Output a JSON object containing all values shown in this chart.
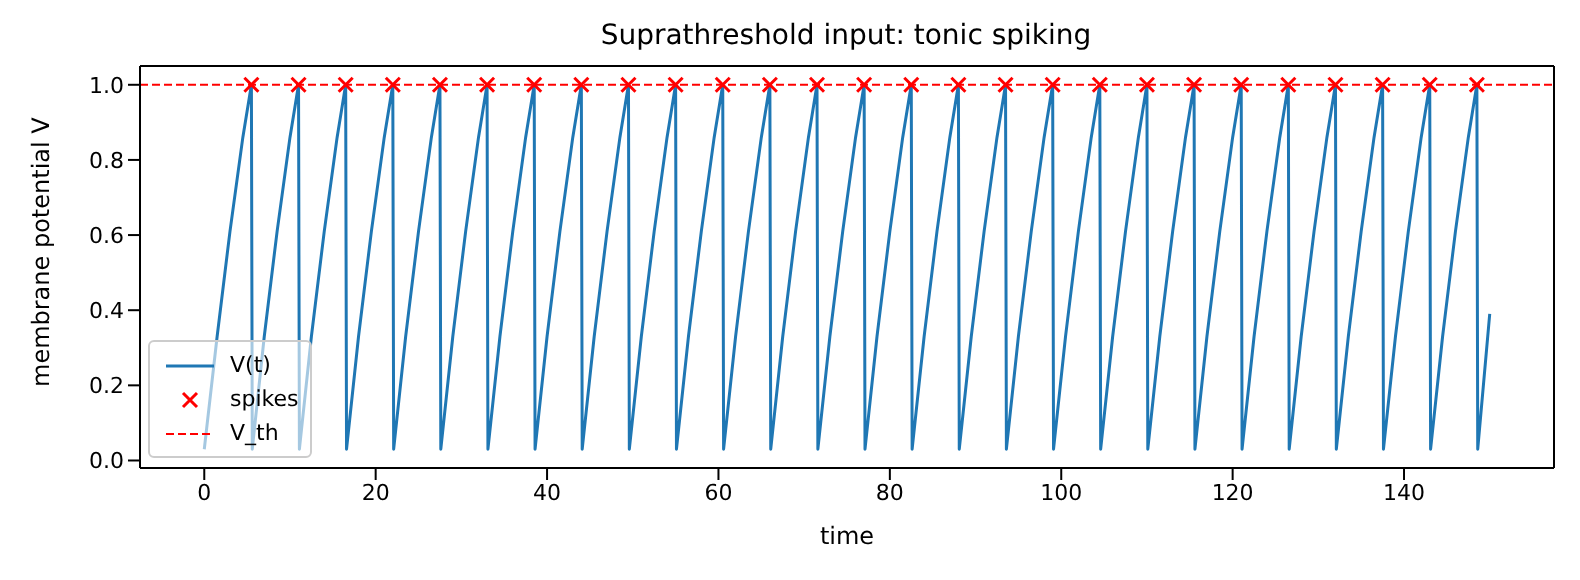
{
  "chart_data": {
    "type": "line",
    "title": "Suprathreshold input: tonic spiking",
    "xlabel": "time",
    "ylabel": "membrane potential V",
    "xlim": [
      -7.5,
      157.5
    ],
    "xticks": [
      0,
      20,
      40,
      60,
      80,
      100,
      120,
      140
    ],
    "ylim": [
      -0.02,
      1.05
    ],
    "yticks": [
      {
        "value": 0,
        "label": "0.0"
      },
      0.2,
      0.4,
      0.6,
      0.8,
      {
        "value": 1,
        "label": "1.0"
      }
    ],
    "grid": false,
    "legend": "bottom left",
    "series": [
      {
        "name": "V(t)",
        "type": "line",
        "color": "#1f77b4",
        "marker": "none",
        "line_style": "solid",
        "x": [
          0,
          1.5,
          3,
          4.5,
          5.5,
          5.6,
          7,
          8.5,
          10,
          11,
          11.1,
          12.5,
          14,
          15.5,
          16.5,
          16.6,
          18,
          19.5,
          21,
          22,
          22.1,
          23.5,
          25,
          26.5,
          27.5,
          27.6,
          29,
          30.5,
          32,
          33,
          33.1,
          34.5,
          36,
          37.5,
          38.5,
          38.6,
          40,
          41.5,
          43,
          44,
          44.1,
          45.5,
          47,
          48.5,
          49.5,
          49.6,
          51,
          52.5,
          54,
          55,
          55.1,
          56.5,
          58,
          59.5,
          60.5,
          60.6,
          62,
          63.5,
          65,
          66,
          66.1,
          67.5,
          69,
          70.5,
          71.5,
          71.6,
          73,
          74.5,
          76,
          77,
          77.1,
          78.5,
          80,
          81.5,
          82.5,
          82.6,
          84,
          85.5,
          87,
          88,
          88.1,
          89.5,
          91,
          92.5,
          93.5,
          93.6,
          95,
          96.5,
          98,
          99,
          99.1,
          100.5,
          102,
          103.5,
          104.5,
          104.6,
          106,
          107.5,
          109,
          110,
          110.1,
          111.5,
          113,
          114.5,
          115.5,
          115.6,
          117,
          118.5,
          120,
          121,
          121.1,
          122.5,
          124,
          125.5,
          126.5,
          126.6,
          128,
          129.5,
          131,
          132,
          132.1,
          133.5,
          135,
          136.5,
          137.5,
          137.6,
          139,
          140.5,
          142,
          143,
          143.1,
          144.5,
          146,
          147.5,
          148.5,
          148.6,
          150
        ],
        "values": [
          0.03,
          0.33,
          0.61,
          0.86,
          1.0,
          0.03,
          0.33,
          0.61,
          0.86,
          1.0,
          0.03,
          0.33,
          0.61,
          0.86,
          1.0,
          0.03,
          0.33,
          0.61,
          0.86,
          1.0,
          0.03,
          0.33,
          0.61,
          0.86,
          1.0,
          0.03,
          0.33,
          0.61,
          0.86,
          1.0,
          0.03,
          0.33,
          0.61,
          0.86,
          1.0,
          0.03,
          0.33,
          0.61,
          0.86,
          1.0,
          0.03,
          0.33,
          0.61,
          0.86,
          1.0,
          0.03,
          0.33,
          0.61,
          0.86,
          1.0,
          0.03,
          0.33,
          0.61,
          0.86,
          1.0,
          0.03,
          0.33,
          0.61,
          0.86,
          1.0,
          0.03,
          0.33,
          0.61,
          0.86,
          1.0,
          0.03,
          0.33,
          0.61,
          0.86,
          1.0,
          0.03,
          0.33,
          0.61,
          0.86,
          1.0,
          0.03,
          0.33,
          0.61,
          0.86,
          1.0,
          0.03,
          0.33,
          0.61,
          0.86,
          1.0,
          0.03,
          0.33,
          0.61,
          0.86,
          1.0,
          0.03,
          0.33,
          0.61,
          0.86,
          1.0,
          0.03,
          0.33,
          0.61,
          0.86,
          1.0,
          0.03,
          0.33,
          0.61,
          0.86,
          1.0,
          0.03,
          0.33,
          0.61,
          0.86,
          1.0,
          0.03,
          0.33,
          0.61,
          0.86,
          1.0,
          0.03,
          0.33,
          0.61,
          0.86,
          1.0,
          0.03,
          0.33,
          0.61,
          0.86,
          1.0,
          0.03,
          0.33,
          0.61,
          0.86,
          1.0,
          0.03,
          0.33,
          0.61,
          0.86,
          1.0,
          0.03,
          0.39
        ]
      },
      {
        "name": "spikes",
        "type": "scatter",
        "color": "#ff0000",
        "marker": "cross",
        "x": [
          5.5,
          11,
          16.5,
          22,
          27.5,
          33,
          38.5,
          44,
          49.5,
          55,
          60.5,
          66,
          71.5,
          77,
          82.5,
          88,
          93.5,
          99,
          104.5,
          110,
          115.5,
          121,
          126.5,
          132,
          137.5,
          143,
          148.5
        ],
        "values": [
          1.0,
          1.0,
          1.0,
          1.0,
          1.0,
          1.0,
          1.0,
          1.0,
          1.0,
          1.0,
          1.0,
          1.0,
          1.0,
          1.0,
          1.0,
          1.0,
          1.0,
          1.0,
          1.0,
          1.0,
          1.0,
          1.0,
          1.0,
          1.0,
          1.0,
          1.0,
          1.0
        ]
      }
    ],
    "ref_lines": [
      {
        "axis": "y",
        "value": 1.0,
        "label": "V_th",
        "color": "#ff0000",
        "line_style": "dashed"
      }
    ]
  }
}
